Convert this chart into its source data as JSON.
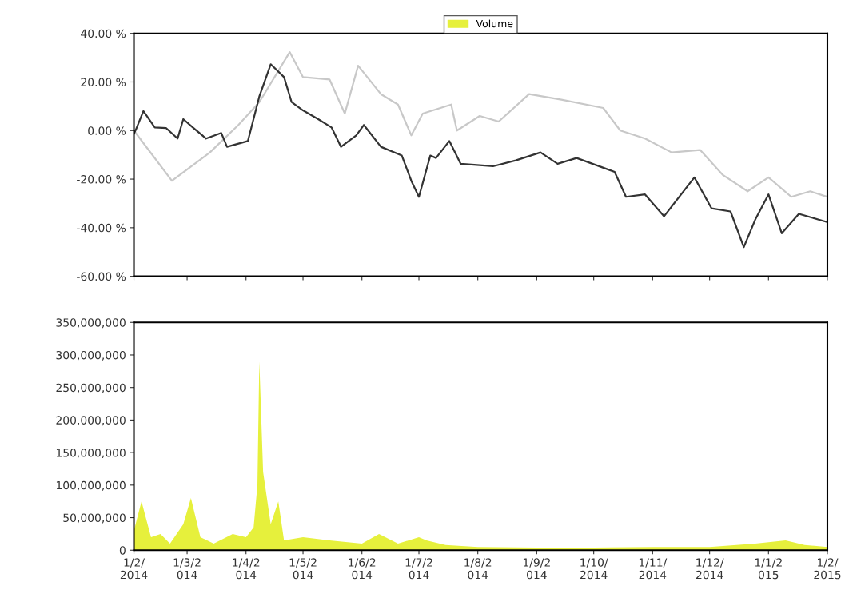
{
  "chart_data": [
    {
      "type": "line",
      "xlim": [
        "2014-02-01",
        "2015-02-01"
      ],
      "ylim": [
        -60,
        40
      ],
      "tick_labels": "y",
      "grid": false,
      "xticks": [
        {
          "value": "2014-02-01",
          "label": null
        },
        {
          "value": "2014-03-01",
          "label": null
        },
        {
          "value": "2014-04-01",
          "label": null
        },
        {
          "value": "2014-05-01",
          "label": null
        },
        {
          "value": "2014-06-01",
          "label": null
        },
        {
          "value": "2014-07-01",
          "label": null
        },
        {
          "value": "2014-08-01",
          "label": null
        },
        {
          "value": "2014-09-01",
          "label": null
        },
        {
          "value": "2014-10-01",
          "label": null
        },
        {
          "value": "2014-11-01",
          "label": null
        },
        {
          "value": "2014-12-01",
          "label": null
        },
        {
          "value": "2015-01-01",
          "label": null
        },
        {
          "value": "2015-02-01",
          "label": null
        }
      ],
      "yticks": [
        {
          "value": -60,
          "label": "-60.00 %"
        },
        {
          "value": -40,
          "label": "-40.00 %"
        },
        {
          "value": -20,
          "label": "-20.00 %"
        },
        {
          "value": 0,
          "label": "0.00 %"
        },
        {
          "value": 20,
          "label": "20.00 %"
        },
        {
          "value": 40,
          "label": "40.00 %"
        }
      ],
      "series": [
        {
          "color": "#c8c8c8",
          "x": [
            "2014-02-01",
            "2014-02-21",
            "2014-03-13",
            "2014-03-28",
            "2014-04-08",
            "2014-04-24",
            "2014-05-01",
            "2014-05-15",
            "2014-05-23",
            "2014-05-30",
            "2014-06-11",
            "2014-06-20",
            "2014-06-27",
            "2014-07-03",
            "2014-07-18",
            "2014-07-21",
            "2014-08-02",
            "2014-08-12",
            "2014-08-28",
            "2014-09-14",
            "2014-10-06",
            "2014-10-15",
            "2014-10-28",
            "2014-11-11",
            "2014-11-26",
            "2014-12-08",
            "2014-12-21",
            "2015-01-01",
            "2015-01-13",
            "2015-01-23",
            "2015-02-01"
          ],
          "values": [
            0,
            -20.7,
            -9,
            2.3,
            11.7,
            32.3,
            22,
            21,
            7,
            26.7,
            15,
            10.7,
            -2,
            7,
            10.7,
            0,
            6,
            3.7,
            15,
            12.7,
            9.3,
            0,
            -3.3,
            -9,
            -8,
            -18.3,
            -25,
            -19.3,
            -27.3,
            -25,
            -27.3
          ]
        },
        {
          "color": "#333333",
          "x": [
            "2014-02-01",
            "2014-02-02",
            "2014-02-06",
            "2014-02-12",
            "2014-02-18",
            "2014-02-24",
            "2014-02-27",
            "2014-03-04",
            "2014-03-11",
            "2014-03-19",
            "2014-03-22",
            "2014-04-02",
            "2014-04-08",
            "2014-04-14",
            "2014-04-21",
            "2014-04-25",
            "2014-05-01",
            "2014-05-09",
            "2014-05-16",
            "2014-05-21",
            "2014-05-29",
            "2014-06-02",
            "2014-06-11",
            "2014-06-22",
            "2014-06-27",
            "2014-07-01",
            "2014-07-07",
            "2014-07-10",
            "2014-07-17",
            "2014-07-23",
            "2014-08-09",
            "2014-08-21",
            "2014-09-03",
            "2014-09-12",
            "2014-09-22",
            "2014-10-12",
            "2014-10-18",
            "2014-10-28",
            "2014-11-07",
            "2014-11-23",
            "2014-12-02",
            "2014-12-12",
            "2014-12-19",
            "2014-12-25",
            "2015-01-01",
            "2015-01-08",
            "2015-01-17",
            "2015-02-01"
          ],
          "values": [
            -1.3,
            0.3,
            8,
            1.3,
            1,
            -3.3,
            4.7,
            1.3,
            -3.3,
            -1,
            -6.7,
            -4.3,
            14,
            27.3,
            22,
            11.7,
            8.3,
            4.7,
            1.3,
            -6.7,
            -2,
            2.3,
            -6.7,
            -10.3,
            -20.7,
            -27.3,
            -10.3,
            -11.3,
            -4.3,
            -13.7,
            -14.7,
            -12.3,
            -9,
            -13.7,
            -11.3,
            -17,
            -27.3,
            -26.3,
            -35.3,
            -19.3,
            -32,
            -33.3,
            -48,
            -36.7,
            -26.3,
            -42.3,
            -34.3,
            -37.7
          ]
        }
      ]
    },
    {
      "type": "area",
      "xlim": [
        "2014-02-01",
        "2015-02-01"
      ],
      "ylim": [
        0,
        350000000
      ],
      "grid": false,
      "legend": "top",
      "xticks": [
        {
          "value": "2014-02-01",
          "label": "1/2/\n2014"
        },
        {
          "value": "2014-03-01",
          "label": "1/3/2\n014"
        },
        {
          "value": "2014-04-01",
          "label": "1/4/2\n014"
        },
        {
          "value": "2014-05-01",
          "label": "1/5/2\n014"
        },
        {
          "value": "2014-06-01",
          "label": "1/6/2\n014"
        },
        {
          "value": "2014-07-01",
          "label": "1/7/2\n014"
        },
        {
          "value": "2014-08-01",
          "label": "1/8/2\n014"
        },
        {
          "value": "2014-09-01",
          "label": "1/9/2\n014"
        },
        {
          "value": "2014-10-01",
          "label": "1/10/\n2014"
        },
        {
          "value": "2014-11-01",
          "label": "1/11/\n2014"
        },
        {
          "value": "2014-12-01",
          "label": "1/12/\n2014"
        },
        {
          "value": "2015-01-01",
          "label": "1/1/2\n015"
        },
        {
          "value": "2015-02-01",
          "label": "1/2/\n2015"
        }
      ],
      "yticks": [
        {
          "value": 0,
          "label": "0"
        },
        {
          "value": 50000000,
          "label": "50,000,000"
        },
        {
          "value": 100000000,
          "label": "100,000,000"
        },
        {
          "value": 150000000,
          "label": "150,000,000"
        },
        {
          "value": 200000000,
          "label": "200,000,000"
        },
        {
          "value": 250000000,
          "label": "250,000,000"
        },
        {
          "value": 300000000,
          "label": "300,000,000"
        },
        {
          "value": 350000000,
          "label": "350,000,000"
        }
      ],
      "series": [
        {
          "name": "Volume",
          "color": "#e6f03c",
          "x": [
            "2014-02-01",
            "2014-02-05",
            "2014-02-10",
            "2014-02-15",
            "2014-02-20",
            "2014-02-27",
            "2014-03-03",
            "2014-03-08",
            "2014-03-15",
            "2014-03-25",
            "2014-04-01",
            "2014-04-05",
            "2014-04-07",
            "2014-04-08",
            "2014-04-10",
            "2014-04-14",
            "2014-04-18",
            "2014-04-21",
            "2014-05-01",
            "2014-05-15",
            "2014-06-01",
            "2014-06-10",
            "2014-06-20",
            "2014-07-01",
            "2014-07-05",
            "2014-07-15",
            "2014-08-01",
            "2014-09-01",
            "2014-10-01",
            "2014-11-01",
            "2014-12-01",
            "2014-12-25",
            "2015-01-10",
            "2015-01-20",
            "2015-02-01"
          ],
          "values": [
            30000000,
            75000000,
            20000000,
            25000000,
            10000000,
            40000000,
            80000000,
            20000000,
            10000000,
            25000000,
            20000000,
            35000000,
            100000000,
            290000000,
            120000000,
            40000000,
            75000000,
            15000000,
            20000000,
            15000000,
            10000000,
            25000000,
            10000000,
            20000000,
            15000000,
            8000000,
            5000000,
            4000000,
            4000000,
            5000000,
            5000000,
            10000000,
            15000000,
            8000000,
            5000000
          ]
        }
      ]
    }
  ]
}
